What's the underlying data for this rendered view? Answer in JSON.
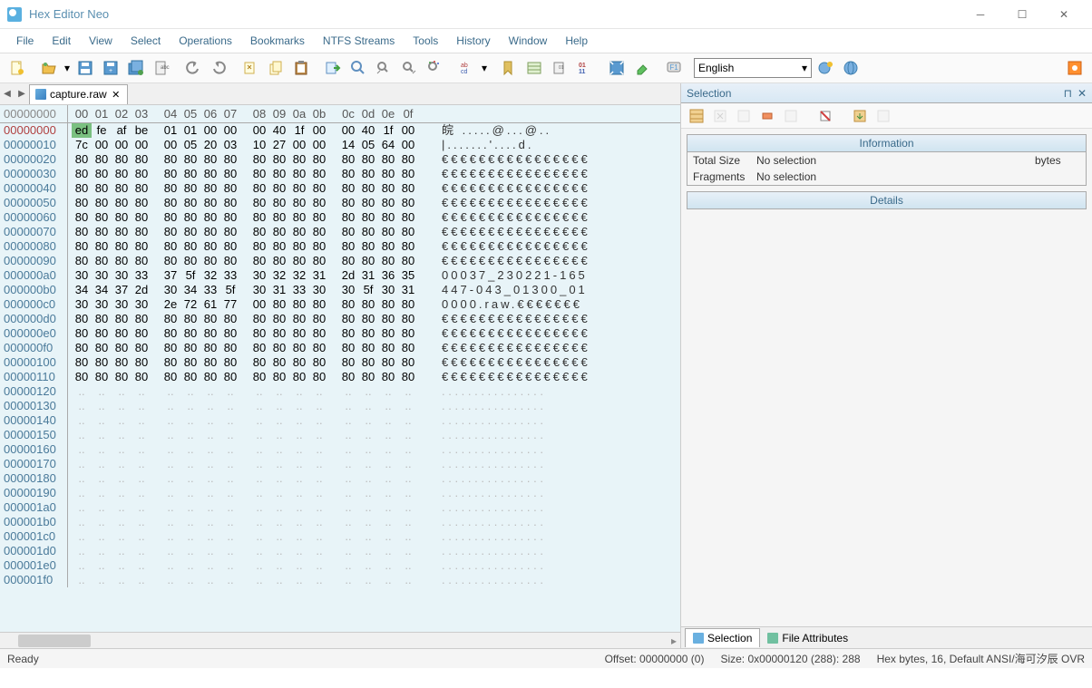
{
  "window": {
    "title": "Hex Editor Neo"
  },
  "menu": [
    "File",
    "Edit",
    "View",
    "Select",
    "Operations",
    "Bookmarks",
    "NTFS Streams",
    "Tools",
    "History",
    "Window",
    "Help"
  ],
  "toolbar": {
    "language": "English"
  },
  "tabs": [
    {
      "name": "capture.raw"
    }
  ],
  "hex": {
    "header_offset": "00000000",
    "cols": [
      "00",
      "01",
      "02",
      "03",
      "04",
      "05",
      "06",
      "07",
      "08",
      "09",
      "0a",
      "0b",
      "0c",
      "0d",
      "0e",
      "0f"
    ],
    "rows": [
      {
        "off": "00000000",
        "b": [
          "ed",
          "fe",
          "af",
          "be",
          "01",
          "01",
          "00",
          "00",
          "00",
          "40",
          "1f",
          "00",
          "00",
          "40",
          "1f",
          "00"
        ],
        "a": "皖    .....@...@.."
      },
      {
        "off": "00000010",
        "b": [
          "7c",
          "00",
          "00",
          "00",
          "00",
          "05",
          "20",
          "03",
          "10",
          "27",
          "00",
          "00",
          "14",
          "05",
          "64",
          "00"
        ],
        "a": "|.......'....d."
      },
      {
        "off": "00000020",
        "b": [
          "80",
          "80",
          "80",
          "80",
          "80",
          "80",
          "80",
          "80",
          "80",
          "80",
          "80",
          "80",
          "80",
          "80",
          "80",
          "80"
        ],
        "a": "€€€€€€€€€€€€€€€€"
      },
      {
        "off": "00000030",
        "b": [
          "80",
          "80",
          "80",
          "80",
          "80",
          "80",
          "80",
          "80",
          "80",
          "80",
          "80",
          "80",
          "80",
          "80",
          "80",
          "80"
        ],
        "a": "€€€€€€€€€€€€€€€€"
      },
      {
        "off": "00000040",
        "b": [
          "80",
          "80",
          "80",
          "80",
          "80",
          "80",
          "80",
          "80",
          "80",
          "80",
          "80",
          "80",
          "80",
          "80",
          "80",
          "80"
        ],
        "a": "€€€€€€€€€€€€€€€€"
      },
      {
        "off": "00000050",
        "b": [
          "80",
          "80",
          "80",
          "80",
          "80",
          "80",
          "80",
          "80",
          "80",
          "80",
          "80",
          "80",
          "80",
          "80",
          "80",
          "80"
        ],
        "a": "€€€€€€€€€€€€€€€€"
      },
      {
        "off": "00000060",
        "b": [
          "80",
          "80",
          "80",
          "80",
          "80",
          "80",
          "80",
          "80",
          "80",
          "80",
          "80",
          "80",
          "80",
          "80",
          "80",
          "80"
        ],
        "a": "€€€€€€€€€€€€€€€€"
      },
      {
        "off": "00000070",
        "b": [
          "80",
          "80",
          "80",
          "80",
          "80",
          "80",
          "80",
          "80",
          "80",
          "80",
          "80",
          "80",
          "80",
          "80",
          "80",
          "80"
        ],
        "a": "€€€€€€€€€€€€€€€€"
      },
      {
        "off": "00000080",
        "b": [
          "80",
          "80",
          "80",
          "80",
          "80",
          "80",
          "80",
          "80",
          "80",
          "80",
          "80",
          "80",
          "80",
          "80",
          "80",
          "80"
        ],
        "a": "€€€€€€€€€€€€€€€€"
      },
      {
        "off": "00000090",
        "b": [
          "80",
          "80",
          "80",
          "80",
          "80",
          "80",
          "80",
          "80",
          "80",
          "80",
          "80",
          "80",
          "80",
          "80",
          "80",
          "80"
        ],
        "a": "€€€€€€€€€€€€€€€€"
      },
      {
        "off": "000000a0",
        "b": [
          "30",
          "30",
          "30",
          "33",
          "37",
          "5f",
          "32",
          "33",
          "30",
          "32",
          "32",
          "31",
          "2d",
          "31",
          "36",
          "35"
        ],
        "a": "00037_230221-165"
      },
      {
        "off": "000000b0",
        "b": [
          "34",
          "34",
          "37",
          "2d",
          "30",
          "34",
          "33",
          "5f",
          "30",
          "31",
          "33",
          "30",
          "30",
          "5f",
          "30",
          "31"
        ],
        "a": "447-043_01300_01"
      },
      {
        "off": "000000c0",
        "b": [
          "30",
          "30",
          "30",
          "30",
          "2e",
          "72",
          "61",
          "77",
          "00",
          "80",
          "80",
          "80",
          "80",
          "80",
          "80",
          "80"
        ],
        "a": "0000.raw.€€€€€€€"
      },
      {
        "off": "000000d0",
        "b": [
          "80",
          "80",
          "80",
          "80",
          "80",
          "80",
          "80",
          "80",
          "80",
          "80",
          "80",
          "80",
          "80",
          "80",
          "80",
          "80"
        ],
        "a": "€€€€€€€€€€€€€€€€"
      },
      {
        "off": "000000e0",
        "b": [
          "80",
          "80",
          "80",
          "80",
          "80",
          "80",
          "80",
          "80",
          "80",
          "80",
          "80",
          "80",
          "80",
          "80",
          "80",
          "80"
        ],
        "a": "€€€€€€€€€€€€€€€€"
      },
      {
        "off": "000000f0",
        "b": [
          "80",
          "80",
          "80",
          "80",
          "80",
          "80",
          "80",
          "80",
          "80",
          "80",
          "80",
          "80",
          "80",
          "80",
          "80",
          "80"
        ],
        "a": "€€€€€€€€€€€€€€€€"
      },
      {
        "off": "00000100",
        "b": [
          "80",
          "80",
          "80",
          "80",
          "80",
          "80",
          "80",
          "80",
          "80",
          "80",
          "80",
          "80",
          "80",
          "80",
          "80",
          "80"
        ],
        "a": "€€€€€€€€€€€€€€€€"
      },
      {
        "off": "00000110",
        "b": [
          "80",
          "80",
          "80",
          "80",
          "80",
          "80",
          "80",
          "80",
          "80",
          "80",
          "80",
          "80",
          "80",
          "80",
          "80",
          "80"
        ],
        "a": "€€€€€€€€€€€€€€€€"
      },
      {
        "off": "00000120",
        "empty": true
      },
      {
        "off": "00000130",
        "empty": true
      },
      {
        "off": "00000140",
        "empty": true
      },
      {
        "off": "00000150",
        "empty": true
      },
      {
        "off": "00000160",
        "empty": true
      },
      {
        "off": "00000170",
        "empty": true
      },
      {
        "off": "00000180",
        "empty": true
      },
      {
        "off": "00000190",
        "empty": true
      },
      {
        "off": "000001a0",
        "empty": true
      },
      {
        "off": "000001b0",
        "empty": true
      },
      {
        "off": "000001c0",
        "empty": true
      },
      {
        "off": "000001d0",
        "empty": true
      },
      {
        "off": "000001e0",
        "empty": true
      },
      {
        "off": "000001f0",
        "empty": true
      }
    ],
    "selected_pos": {
      "row": 0,
      "col": 0
    }
  },
  "selection_panel": {
    "title": "Selection",
    "info_title": "Information",
    "total_size_label": "Total Size",
    "total_size_value": "No selection",
    "total_size_unit": "bytes",
    "fragments_label": "Fragments",
    "fragments_value": "No selection",
    "details_title": "Details"
  },
  "bottom_tabs": {
    "selection": "Selection",
    "fileattr": "File Attributes"
  },
  "status": {
    "ready": "Ready",
    "offset": "Offset: 00000000 (0)",
    "size": "Size: 0x00000120 (288): 288",
    "mode": "Hex bytes, 16, Default ANSI/海可汐辰  OVR"
  },
  "colors": {
    "titlebar_text": "#5a8fb0",
    "menu_text": "#3a6a8a",
    "hex_bg": "#e8f4f8",
    "offset_text": "#4a7a9a",
    "selected_bg": "#7ac080",
    "panel_hdr1": "#e8f0f8",
    "panel_hdr2": "#d0e4f0"
  }
}
